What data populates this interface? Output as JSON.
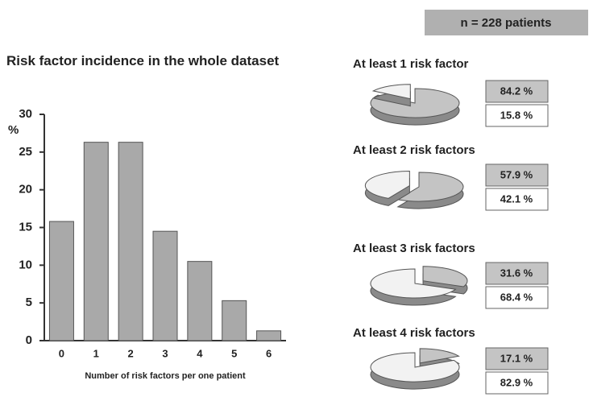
{
  "header": {
    "note": "n = 228 patients"
  },
  "chart_data": [
    {
      "type": "bar",
      "title": "Risk factor incidence in the whole dataset",
      "y_label": "%",
      "x_label": "Number of risk factors per one patient",
      "categories": [
        "0",
        "1",
        "2",
        "3",
        "4",
        "5",
        "6"
      ],
      "values": [
        15.8,
        26.3,
        26.3,
        14.5,
        10.5,
        5.3,
        1.3
      ],
      "color": "#a9a9a9",
      "ylim": [
        0,
        30
      ],
      "yticks": [
        0,
        5,
        10,
        15,
        20,
        25,
        30
      ]
    },
    {
      "type": "pie",
      "title": "At least 1 risk factor",
      "values": [
        84.2,
        15.8
      ],
      "value_labels": [
        "84.2 %",
        "15.8 %"
      ],
      "colors": [
        "#c4c4c4",
        "#f2f2f2"
      ]
    },
    {
      "type": "pie",
      "title": "At least 2 risk factors",
      "values": [
        57.9,
        42.1
      ],
      "value_labels": [
        "57.9 %",
        "42.1 %"
      ],
      "colors": [
        "#c4c4c4",
        "#f2f2f2"
      ]
    },
    {
      "type": "pie",
      "title": "At least 3 risk factors",
      "values": [
        31.6,
        68.4
      ],
      "value_labels": [
        "31.6 %",
        "68.4 %"
      ],
      "colors": [
        "#c4c4c4",
        "#f2f2f2"
      ]
    },
    {
      "type": "pie",
      "title": "At least 4 risk factors",
      "values": [
        17.1,
        82.9
      ],
      "value_labels": [
        "17.1 %",
        "82.9 %"
      ],
      "colors": [
        "#c4c4c4",
        "#f2f2f2"
      ]
    }
  ]
}
